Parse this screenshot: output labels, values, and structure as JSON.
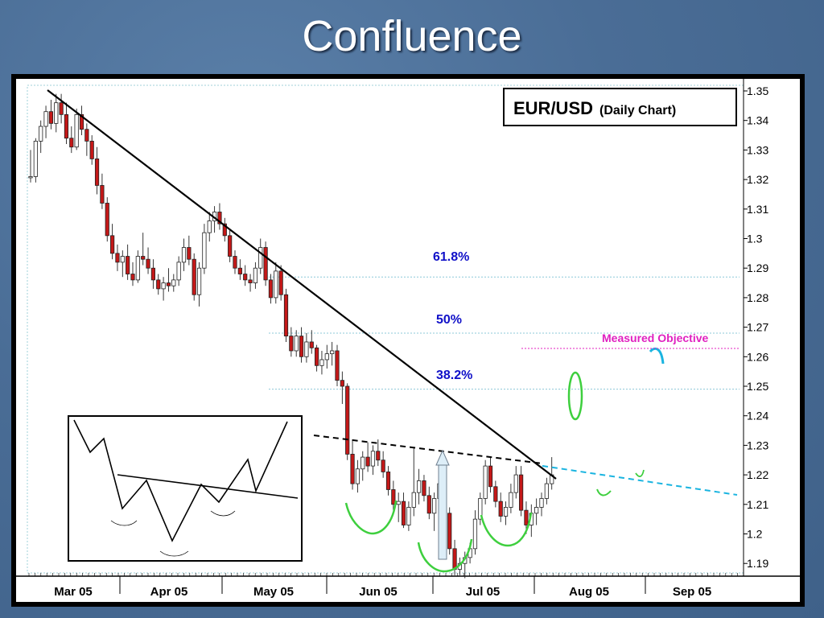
{
  "slide": {
    "title": "Confluence"
  },
  "chart_data": {
    "type": "candlestick",
    "title": "EUR/USD",
    "subtitle": "(Daily Chart)",
    "y_ticks": [
      "1.35",
      "1.34",
      "1.33",
      "1.32",
      "1.31",
      "1.3",
      "1.29",
      "1.28",
      "1.27",
      "1.26",
      "1.25",
      "1.24",
      "1.23",
      "1.22",
      "1.21",
      "1.2",
      "1.19"
    ],
    "ylim": [
      1.183,
      1.352
    ],
    "x_ticks": [
      "Mar 05",
      "Apr 05",
      "May 05",
      "Jun 05",
      "Jul 05",
      "Aug 05",
      "Sep 05"
    ],
    "fib_levels": [
      {
        "label": "61.8%",
        "value": 1.287
      },
      {
        "label": "50%",
        "value": 1.268
      },
      {
        "label": "38.2%",
        "value": 1.249
      }
    ],
    "measured_objective": {
      "label": "Measured Objective",
      "value": 1.26
    },
    "candles": [
      [
        1.321,
        1.33,
        1.319,
        1.321
      ],
      [
        1.321,
        1.334,
        1.319,
        1.333
      ],
      [
        1.333,
        1.34,
        1.329,
        1.338
      ],
      [
        1.338,
        1.345,
        1.334,
        1.343
      ],
      [
        1.343,
        1.347,
        1.337,
        1.339
      ],
      [
        1.339,
        1.349,
        1.336,
        1.346
      ],
      [
        1.346,
        1.349,
        1.339,
        1.342
      ],
      [
        1.342,
        1.346,
        1.332,
        1.334
      ],
      [
        1.334,
        1.338,
        1.329,
        1.331
      ],
      [
        1.331,
        1.344,
        1.33,
        1.342
      ],
      [
        1.342,
        1.345,
        1.335,
        1.337
      ],
      [
        1.337,
        1.339,
        1.328,
        1.333
      ],
      [
        1.333,
        1.335,
        1.325,
        1.327
      ],
      [
        1.327,
        1.331,
        1.315,
        1.318
      ],
      [
        1.318,
        1.322,
        1.31,
        1.312
      ],
      [
        1.312,
        1.314,
        1.299,
        1.301
      ],
      [
        1.301,
        1.305,
        1.293,
        1.295
      ],
      [
        1.295,
        1.298,
        1.289,
        1.292
      ],
      [
        1.292,
        1.296,
        1.287,
        1.294
      ],
      [
        1.294,
        1.298,
        1.286,
        1.288
      ],
      [
        1.288,
        1.292,
        1.284,
        1.286
      ],
      [
        1.286,
        1.296,
        1.285,
        1.294
      ],
      [
        1.294,
        1.302,
        1.291,
        1.293
      ],
      [
        1.293,
        1.297,
        1.288,
        1.29
      ],
      [
        1.29,
        1.293,
        1.283,
        1.286
      ],
      [
        1.286,
        1.288,
        1.281,
        1.283
      ],
      [
        1.283,
        1.287,
        1.279,
        1.285
      ],
      [
        1.285,
        1.29,
        1.282,
        1.284
      ],
      [
        1.284,
        1.288,
        1.282,
        1.286
      ],
      [
        1.286,
        1.294,
        1.284,
        1.292
      ],
      [
        1.292,
        1.3,
        1.289,
        1.297
      ],
      [
        1.297,
        1.301,
        1.291,
        1.293
      ],
      [
        1.293,
        1.295,
        1.279,
        1.281
      ],
      [
        1.281,
        1.292,
        1.277,
        1.29
      ],
      [
        1.29,
        1.305,
        1.288,
        1.302
      ],
      [
        1.302,
        1.309,
        1.299,
        1.306
      ],
      [
        1.306,
        1.311,
        1.302,
        1.309
      ],
      [
        1.309,
        1.312,
        1.303,
        1.305
      ],
      [
        1.305,
        1.307,
        1.299,
        1.301
      ],
      [
        1.301,
        1.303,
        1.292,
        1.294
      ],
      [
        1.294,
        1.296,
        1.288,
        1.29
      ],
      [
        1.29,
        1.293,
        1.286,
        1.288
      ],
      [
        1.288,
        1.291,
        1.284,
        1.286
      ],
      [
        1.286,
        1.288,
        1.282,
        1.285
      ],
      [
        1.285,
        1.292,
        1.283,
        1.29
      ],
      [
        1.29,
        1.3,
        1.288,
        1.297
      ],
      [
        1.297,
        1.299,
        1.284,
        1.286
      ],
      [
        1.286,
        1.288,
        1.278,
        1.28
      ],
      [
        1.28,
        1.292,
        1.278,
        1.289
      ],
      [
        1.289,
        1.291,
        1.279,
        1.281
      ],
      [
        1.281,
        1.283,
        1.265,
        1.267
      ],
      [
        1.267,
        1.27,
        1.26,
        1.262
      ],
      [
        1.262,
        1.269,
        1.26,
        1.267
      ],
      [
        1.267,
        1.27,
        1.258,
        1.26
      ],
      [
        1.26,
        1.268,
        1.258,
        1.265
      ],
      [
        1.265,
        1.269,
        1.261,
        1.263
      ],
      [
        1.263,
        1.264,
        1.255,
        1.257
      ],
      [
        1.257,
        1.262,
        1.254,
        1.259
      ],
      [
        1.259,
        1.264,
        1.256,
        1.261
      ],
      [
        1.261,
        1.265,
        1.257,
        1.262
      ],
      [
        1.262,
        1.264,
        1.25,
        1.252
      ],
      [
        1.252,
        1.255,
        1.244,
        1.25
      ],
      [
        1.25,
        1.251,
        1.225,
        1.227
      ],
      [
        1.227,
        1.232,
        1.215,
        1.217
      ],
      [
        1.217,
        1.225,
        1.214,
        1.222
      ],
      [
        1.222,
        1.228,
        1.218,
        1.226
      ],
      [
        1.226,
        1.231,
        1.221,
        1.223
      ],
      [
        1.223,
        1.23,
        1.22,
        1.228
      ],
      [
        1.228,
        1.232,
        1.223,
        1.225
      ],
      [
        1.225,
        1.228,
        1.219,
        1.221
      ],
      [
        1.221,
        1.223,
        1.213,
        1.215
      ],
      [
        1.215,
        1.218,
        1.208,
        1.21
      ],
      [
        1.21,
        1.214,
        1.204,
        1.211
      ],
      [
        1.211,
        1.214,
        1.202,
        1.203
      ],
      [
        1.203,
        1.211,
        1.201,
        1.209
      ],
      [
        1.209,
        1.229,
        1.206,
        1.214
      ],
      [
        1.214,
        1.222,
        1.21,
        1.218
      ],
      [
        1.218,
        1.22,
        1.211,
        1.213
      ],
      [
        1.213,
        1.216,
        1.205,
        1.207
      ],
      [
        1.207,
        1.214,
        1.201,
        1.212
      ],
      [
        1.212,
        1.222,
        1.209,
        1.217
      ],
      [
        1.217,
        1.22,
        1.205,
        1.207
      ],
      [
        1.207,
        1.209,
        1.193,
        1.195
      ],
      [
        1.195,
        1.198,
        1.186,
        1.188
      ],
      [
        1.188,
        1.192,
        1.186,
        1.19
      ],
      [
        1.19,
        1.194,
        1.185,
        1.192
      ],
      [
        1.192,
        1.197,
        1.19,
        1.195
      ],
      [
        1.195,
        1.208,
        1.193,
        1.205
      ],
      [
        1.205,
        1.214,
        1.203,
        1.212
      ],
      [
        1.212,
        1.225,
        1.21,
        1.223
      ],
      [
        1.223,
        1.226,
        1.214,
        1.216
      ],
      [
        1.216,
        1.218,
        1.209,
        1.211
      ],
      [
        1.211,
        1.214,
        1.204,
        1.206
      ],
      [
        1.206,
        1.211,
        1.203,
        1.209
      ],
      [
        1.209,
        1.217,
        1.207,
        1.214
      ],
      [
        1.214,
        1.223,
        1.212,
        1.22
      ],
      [
        1.22,
        1.223,
        1.206,
        1.208
      ],
      [
        1.208,
        1.211,
        1.2,
        1.203
      ],
      [
        1.203,
        1.21,
        1.199,
        1.207
      ],
      [
        1.207,
        1.212,
        1.203,
        1.209
      ],
      [
        1.209,
        1.214,
        1.206,
        1.212
      ],
      [
        1.212,
        1.219,
        1.21,
        1.217
      ],
      [
        1.217,
        1.226,
        1.215,
        1.22
      ]
    ]
  },
  "inset": {
    "description_hidden": ""
  }
}
